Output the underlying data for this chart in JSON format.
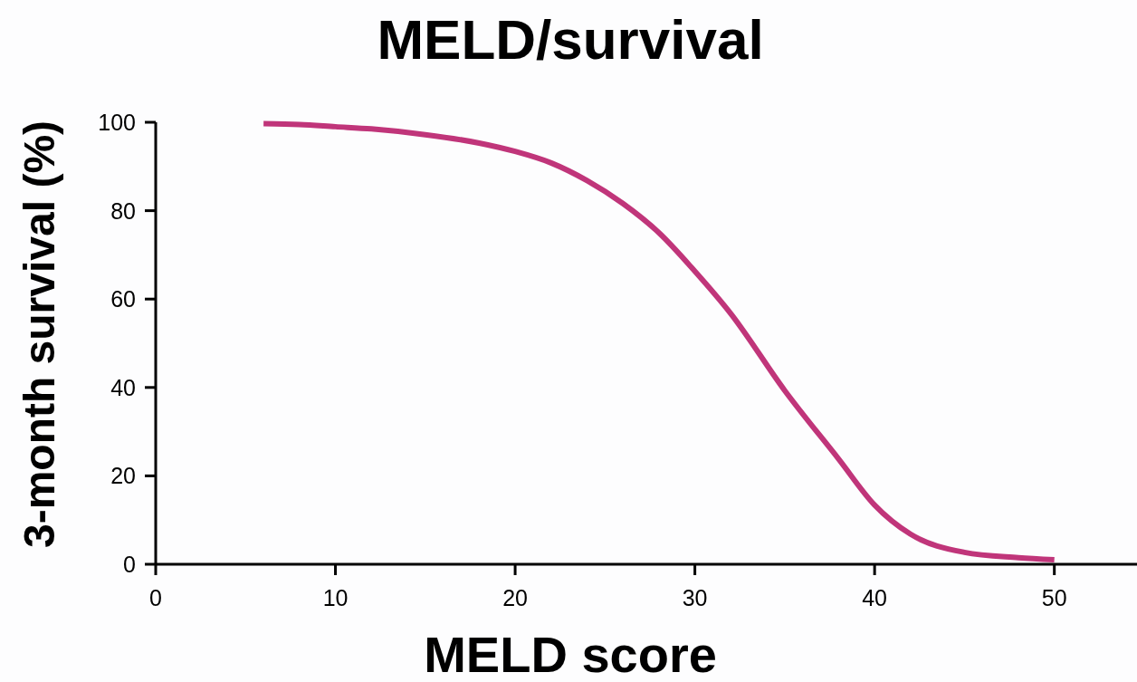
{
  "chart_data": {
    "type": "line",
    "title": "MELD/survival",
    "xlabel": "MELD score",
    "ylabel": "3-month survival (%)",
    "x": [
      6,
      8,
      10,
      12,
      15,
      18,
      20,
      22,
      24,
      26,
      28,
      30,
      32,
      35,
      38,
      40,
      42,
      45,
      48,
      50
    ],
    "series": [
      {
        "color": "#c0357a",
        "values": [
          99.7,
          99.5,
          99,
          98.5,
          97.2,
          95.3,
          93.4,
          90.8,
          86.8,
          81.6,
          75,
          66.3,
          56.7,
          39.3,
          23.8,
          13.4,
          6.8,
          2.7,
          1.5,
          1
        ]
      }
    ],
    "xlim": [
      0,
      54.6
    ],
    "ylim": [
      0,
      100
    ],
    "xticks": [
      0,
      10,
      20,
      30,
      40,
      50
    ],
    "yticks": [
      0,
      20,
      40,
      60,
      80,
      100
    ],
    "grid": false,
    "marker": "none",
    "line_style": "solid"
  }
}
